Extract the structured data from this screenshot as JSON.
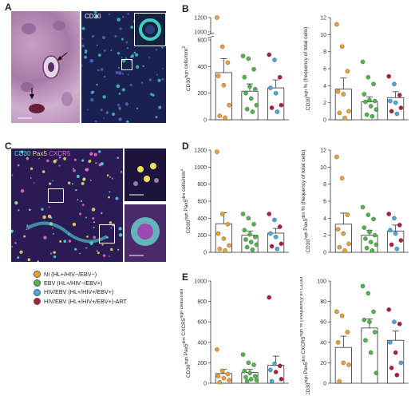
{
  "panels": {
    "A": "A",
    "B": "B",
    "C": "C",
    "D": "D",
    "E": "E"
  },
  "image_labels": {
    "cd30_a": "CD30",
    "cd30_c": "CD30",
    "pax5_c": "Pax5",
    "cxcr5_c": "CXCR5"
  },
  "legend": [
    {
      "label": "NI (HL+/HIV−/EBV−)",
      "color": "#f0a030"
    },
    {
      "label": "EBV (HL+/HIV−/EBV+)",
      "color": "#4db848"
    },
    {
      "label": "HIV/EBV (HL+/HIV+/EBV+)",
      "color": "#4aa8dc"
    },
    {
      "label": "HIV/EBV (HL+/HIV+/EBV+)-ART",
      "color": "#b01e3a"
    }
  ],
  "chart_data": [
    {
      "id": "B1",
      "type": "bar",
      "ylabel": "CD30^high cells/mm^2",
      "yticks": [
        "0",
        "200",
        "400",
        "600",
        "1000",
        "1200"
      ],
      "broken_axis": true,
      "categories": [
        "NI",
        "EBV",
        "HIV/EBV"
      ],
      "values": [
        355,
        215,
        240
      ],
      "errors": [
        105,
        55,
        60
      ],
      "points": [
        [
          1200,
          550,
          430,
          330,
          260,
          110,
          30,
          15
        ],
        [
          480,
          460,
          380,
          320,
          250,
          230,
          200,
          160,
          110,
          80,
          60
        ],
        [
          490,
          450,
          320,
          240,
          200,
          110,
          90,
          60
        ]
      ],
      "point_colors": [
        [
          "#f0a030",
          "#f0a030",
          "#f0a030",
          "#f0a030",
          "#f0a030",
          "#f0a030",
          "#f0a030",
          "#f0a030"
        ],
        [
          "#4db848",
          "#4db848",
          "#4db848",
          "#4db848",
          "#4db848",
          "#4db848",
          "#4db848",
          "#4db848",
          "#4db848",
          "#4db848",
          "#4db848"
        ],
        [
          "#b01e3a",
          "#4aa8dc",
          "#b01e3a",
          "#4aa8dc",
          "#4aa8dc",
          "#b01e3a",
          "#b01e3a",
          "#4aa8dc"
        ]
      ]
    },
    {
      "id": "B2",
      "type": "bar",
      "ylabel": "CD30^high % (frequency of total cells)",
      "yticks": [
        "0",
        "2",
        "4",
        "6",
        "8",
        "10",
        "12"
      ],
      "ylim": [
        0,
        12
      ],
      "categories": [
        "NI",
        "EBV",
        "HIV/EBV"
      ],
      "values": [
        3.6,
        2.1,
        2.6
      ],
      "errors": [
        1.3,
        0.6,
        0.7
      ],
      "points": [
        [
          11.2,
          8.6,
          5.7,
          3.3,
          3.0,
          1.0,
          0.8,
          0.2
        ],
        [
          6.8,
          5.0,
          4.2,
          3.0,
          2.3,
          2.2,
          2.1,
          1.6,
          1.2,
          0.6,
          0.4
        ],
        [
          5.1,
          4.2,
          2.9,
          2.2,
          2.0,
          1.4,
          1.0,
          0.7
        ]
      ],
      "point_colors": [
        [
          "#f0a030",
          "#f0a030",
          "#f0a030",
          "#f0a030",
          "#f0a030",
          "#f0a030",
          "#f0a030",
          "#f0a030"
        ],
        [
          "#4db848",
          "#4db848",
          "#4db848",
          "#4db848",
          "#4db848",
          "#4db848",
          "#4db848",
          "#4db848",
          "#4db848",
          "#4db848",
          "#4db848"
        ],
        [
          "#b01e3a",
          "#4aa8dc",
          "#b01e3a",
          "#4aa8dc",
          "#4aa8dc",
          "#b01e3a",
          "#b01e3a",
          "#4aa8dc"
        ]
      ]
    },
    {
      "id": "D1",
      "type": "bar",
      "ylabel": "CD30^high Pax5^dim cells/mm^2",
      "yticks": [
        "0",
        "200",
        "400",
        "600",
        "800",
        "1000",
        "1200"
      ],
      "ylim": [
        0,
        1200
      ],
      "categories": [
        "NI",
        "EBV",
        "HIV/EBV"
      ],
      "values": [
        335,
        200,
        225
      ],
      "errors": [
        130,
        50,
        55
      ],
      "points": [
        [
          1180,
          450,
          330,
          220,
          160,
          80,
          40,
          20
        ],
        [
          450,
          400,
          330,
          260,
          210,
          180,
          150,
          120,
          90,
          60,
          30
        ],
        [
          450,
          380,
          300,
          220,
          180,
          100,
          70,
          40
        ]
      ],
      "point_colors": [
        [
          "#f0a030",
          "#f0a030",
          "#f0a030",
          "#f0a030",
          "#f0a030",
          "#f0a030",
          "#f0a030",
          "#f0a030"
        ],
        [
          "#4db848",
          "#4db848",
          "#4db848",
          "#4db848",
          "#4db848",
          "#4db848",
          "#4db848",
          "#4db848",
          "#4db848",
          "#4db848",
          "#4db848"
        ],
        [
          "#b01e3a",
          "#4aa8dc",
          "#b01e3a",
          "#4aa8dc",
          "#4aa8dc",
          "#b01e3a",
          "#b01e3a",
          "#4aa8dc"
        ]
      ]
    },
    {
      "id": "D2",
      "type": "bar",
      "ylabel": "CD30^high Pax5^dim % (frequency of total cells)",
      "yticks": [
        "0",
        "2",
        "4",
        "6",
        "8",
        "10",
        "12"
      ],
      "ylim": [
        0,
        12
      ],
      "categories": [
        "NI",
        "EBV",
        "HIV/EBV"
      ],
      "values": [
        3.3,
        2.0,
        2.5
      ],
      "errors": [
        1.3,
        0.6,
        0.7
      ],
      "points": [
        [
          11.2,
          8.7,
          4.4,
          2.7,
          2.2,
          1.0,
          0.6,
          0.2
        ],
        [
          5.3,
          4.4,
          3.9,
          2.9,
          2.4,
          2.0,
          1.6,
          1.2,
          0.9,
          0.5,
          0.2
        ],
        [
          4.5,
          4.0,
          3.2,
          2.6,
          2.2,
          1.4,
          0.9,
          0.4
        ]
      ],
      "point_colors": [
        [
          "#f0a030",
          "#f0a030",
          "#f0a030",
          "#f0a030",
          "#f0a030",
          "#f0a030",
          "#f0a030",
          "#f0a030"
        ],
        [
          "#4db848",
          "#4db848",
          "#4db848",
          "#4db848",
          "#4db848",
          "#4db848",
          "#4db848",
          "#4db848",
          "#4db848",
          "#4db848",
          "#4db848"
        ],
        [
          "#b01e3a",
          "#4aa8dc",
          "#b01e3a",
          "#4aa8dc",
          "#4aa8dc",
          "#b01e3a",
          "#b01e3a",
          "#4aa8dc"
        ]
      ]
    },
    {
      "id": "E1",
      "type": "bar",
      "ylabel": "CD30^high Pax5^dim CXCR5^high cells/mm^2",
      "yticks": [
        "0",
        "200",
        "400",
        "600",
        "800",
        "1000"
      ],
      "ylim": [
        0,
        1000
      ],
      "categories": [
        "NI",
        "EBV",
        "HIV/EBV"
      ],
      "values": [
        95,
        105,
        175
      ],
      "errors": [
        40,
        30,
        90
      ],
      "points": [
        [
          330,
          120,
          90,
          70,
          50,
          30,
          10
        ],
        [
          280,
          200,
          180,
          120,
          100,
          70,
          60,
          40,
          30,
          20
        ],
        [
          840,
          190,
          170,
          130,
          110,
          40,
          20
        ]
      ],
      "point_colors": [
        [
          "#f0a030",
          "#f0a030",
          "#f0a030",
          "#f0a030",
          "#f0a030",
          "#f0a030",
          "#f0a030"
        ],
        [
          "#4db848",
          "#4db848",
          "#4db848",
          "#4db848",
          "#4db848",
          "#4db848",
          "#4db848",
          "#4db848",
          "#4db848",
          "#4db848"
        ],
        [
          "#b01e3a",
          "#4aa8dc",
          "#b01e3a",
          "#4aa8dc",
          "#b01e3a",
          "#b01e3a",
          "#4aa8dc"
        ]
      ]
    },
    {
      "id": "E2",
      "type": "bar",
      "ylabel": "CD30^high Pax5^dim CXCR5^high % (frequency in CD30^high)",
      "yticks": [
        "0",
        "20",
        "40",
        "60",
        "80",
        "100"
      ],
      "ylim": [
        0,
        100
      ],
      "categories": [
        "NI",
        "EBV",
        "HIV/EBV"
      ],
      "values": [
        35,
        54,
        42
      ],
      "errors": [
        11,
        9,
        9
      ],
      "points": [
        [
          70,
          66,
          50,
          40,
          20,
          18,
          2
        ],
        [
          95,
          88,
          70,
          62,
          60,
          50,
          42,
          30,
          10
        ],
        [
          72,
          60,
          58,
          40,
          30,
          20,
          15,
          8
        ]
      ],
      "point_colors": [
        [
          "#f0a030",
          "#f0a030",
          "#f0a030",
          "#f0a030",
          "#f0a030",
          "#f0a030",
          "#f0a030"
        ],
        [
          "#4db848",
          "#4db848",
          "#4db848",
          "#4db848",
          "#4db848",
          "#4db848",
          "#4db848",
          "#4db848",
          "#4db848"
        ],
        [
          "#b01e3a",
          "#4aa8dc",
          "#b01e3a",
          "#4aa8dc",
          "#b01e3a",
          "#4aa8dc",
          "#b01e3a",
          "#b01e3a"
        ]
      ]
    }
  ]
}
